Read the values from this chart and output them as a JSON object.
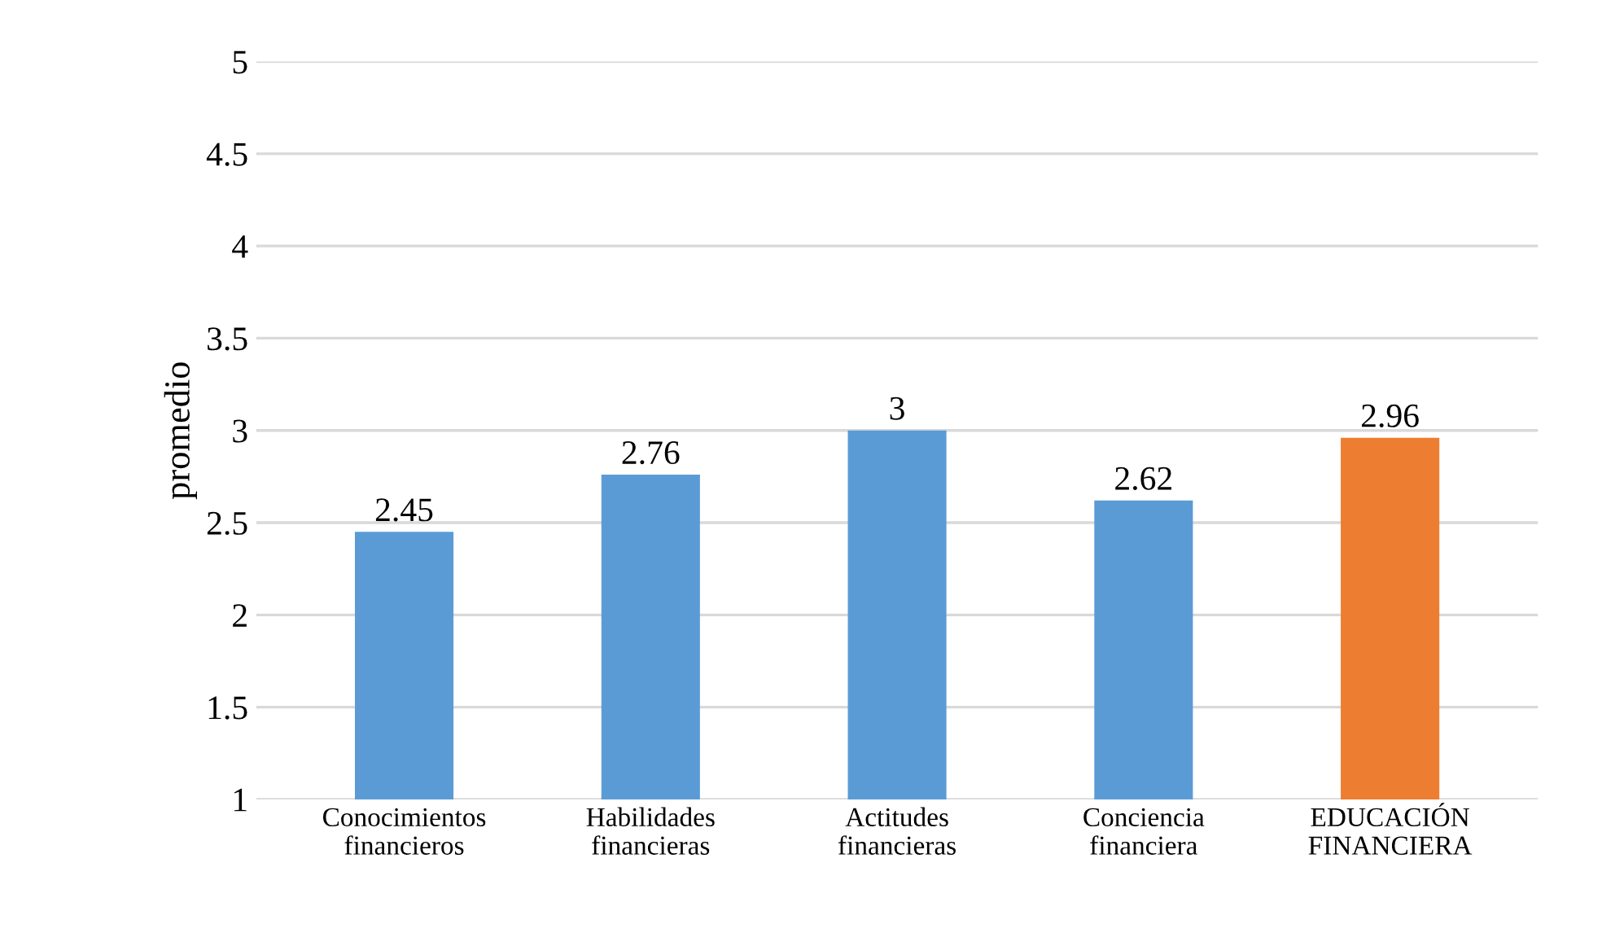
{
  "chart_data": {
    "type": "bar",
    "ylabel": "promedio",
    "categories": [
      "Conocimientos\nfinancieros",
      "Habilidades\nfinancieras",
      "Actitudes\nfinancieras",
      "Conciencia\nfinanciera",
      "EDUCACIÓN\nFINANCIERA"
    ],
    "values": [
      2.45,
      2.76,
      3,
      2.62,
      2.96
    ],
    "colors": [
      "#5b9bd5",
      "#5b9bd5",
      "#5b9bd5",
      "#5b9bd5",
      "#ed7d31"
    ],
    "ylim": [
      1,
      5
    ],
    "yticks": [
      1,
      1.5,
      2,
      2.5,
      3,
      3.5,
      4,
      4.5,
      5
    ],
    "grid": "y",
    "data_labels": true
  }
}
